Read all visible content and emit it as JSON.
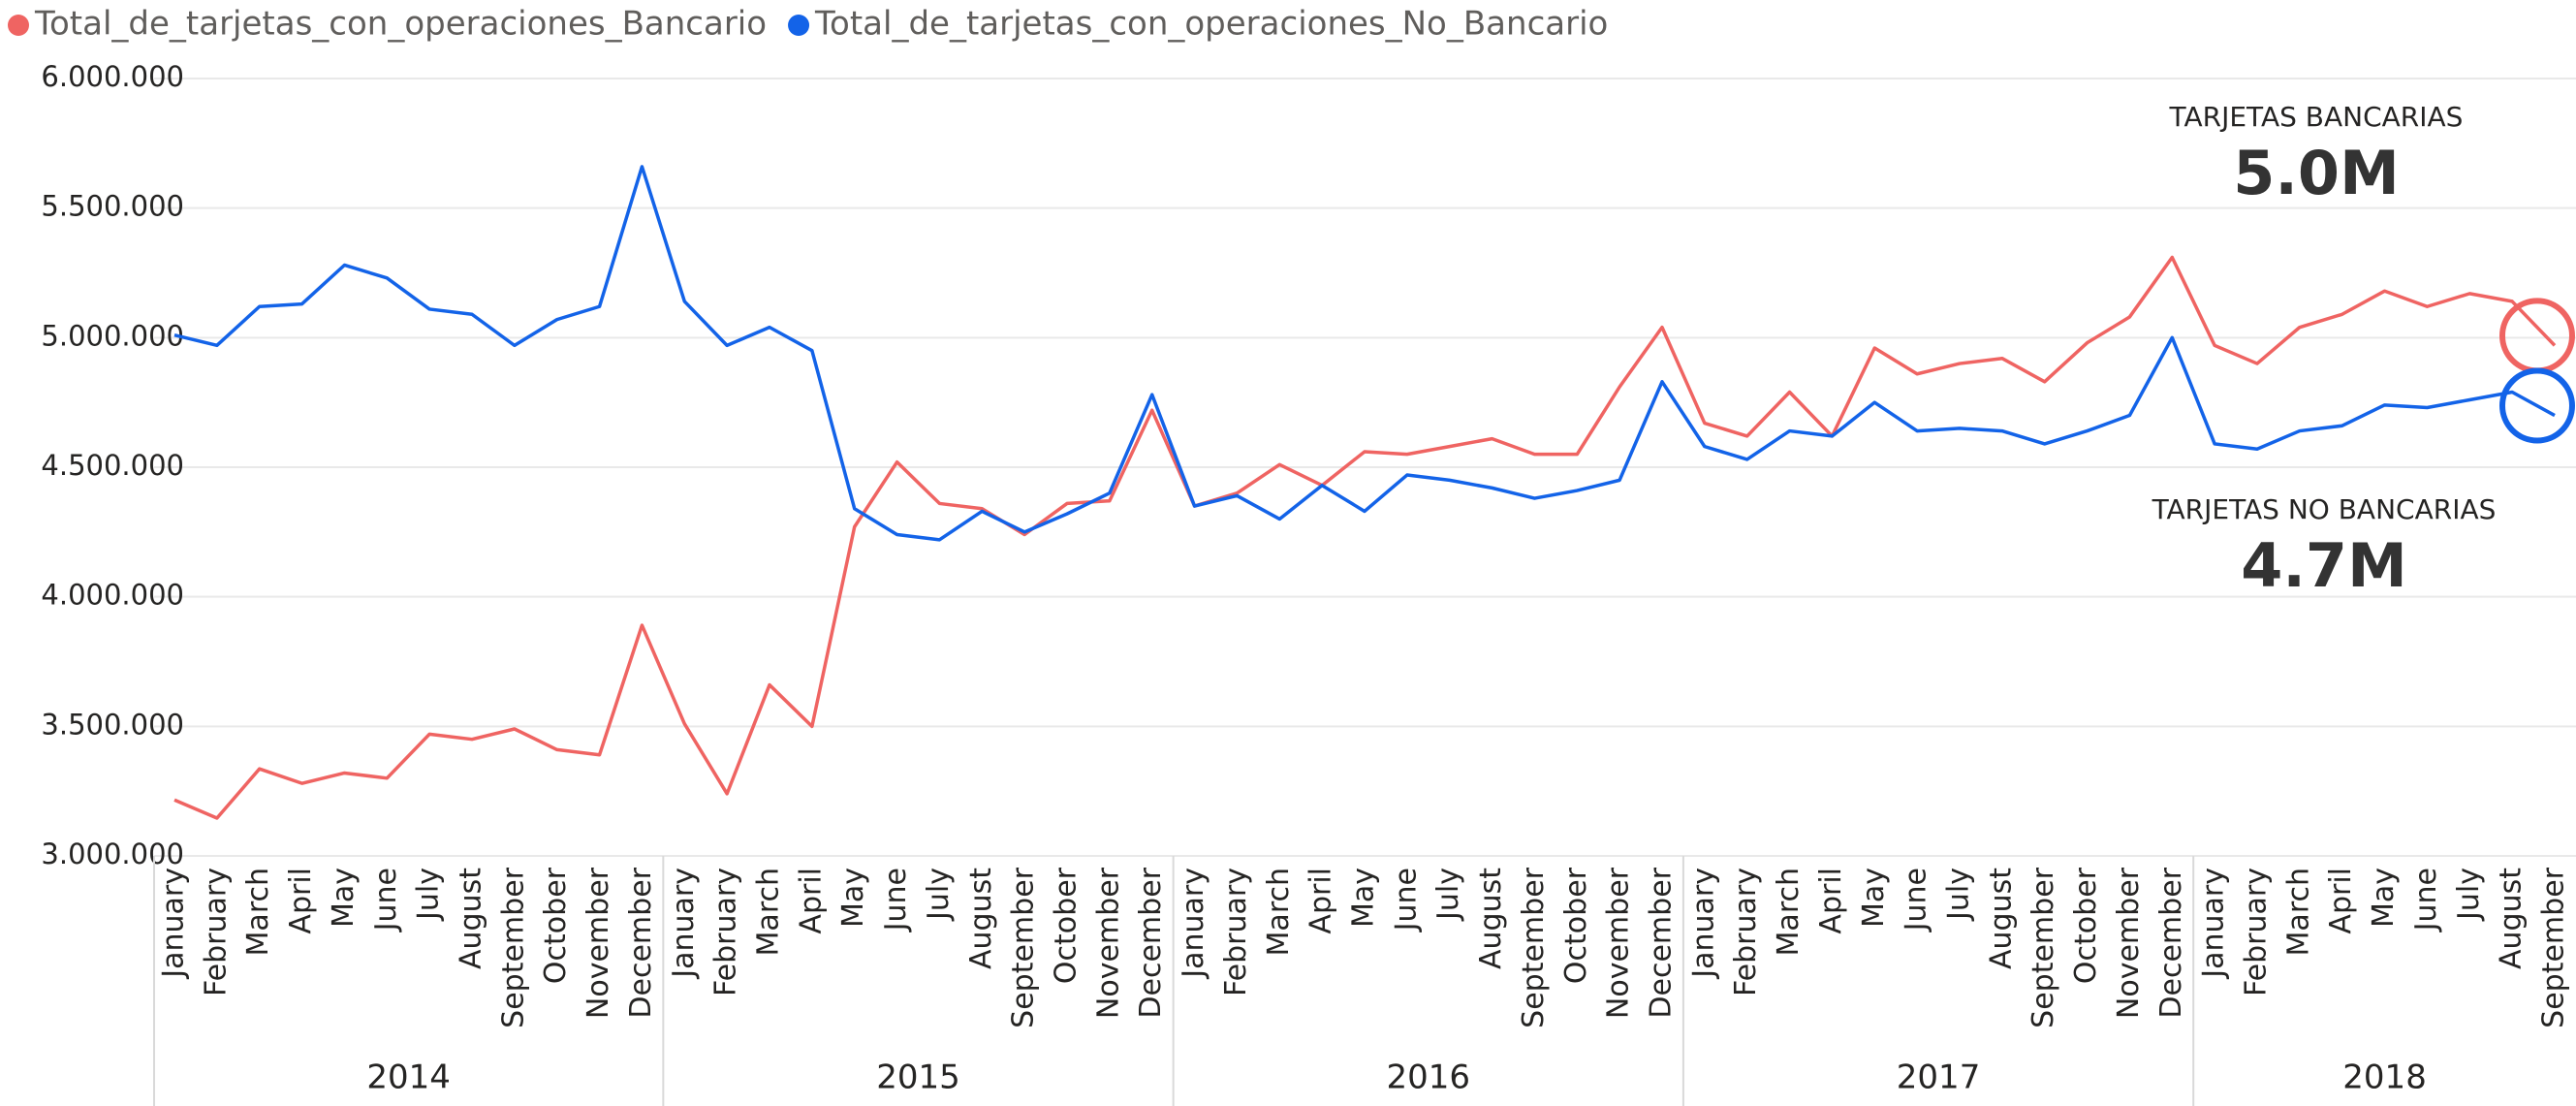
{
  "chart_data": {
    "type": "line",
    "year_groups": [
      {
        "year": "2014",
        "months": [
          "January",
          "February",
          "March",
          "April",
          "May",
          "June",
          "July",
          "August",
          "September",
          "October",
          "November",
          "December"
        ]
      },
      {
        "year": "2015",
        "months": [
          "January",
          "February",
          "March",
          "April",
          "May",
          "June",
          "July",
          "August",
          "September",
          "October",
          "November",
          "December"
        ]
      },
      {
        "year": "2016",
        "months": [
          "January",
          "February",
          "March",
          "April",
          "May",
          "June",
          "July",
          "August",
          "September",
          "October",
          "November",
          "December"
        ]
      },
      {
        "year": "2017",
        "months": [
          "January",
          "February",
          "March",
          "April",
          "May",
          "June",
          "July",
          "August",
          "September",
          "October",
          "November",
          "December"
        ]
      },
      {
        "year": "2018",
        "months": [
          "January",
          "February",
          "March",
          "April",
          "May",
          "June",
          "July",
          "August",
          "September"
        ]
      }
    ],
    "series": [
      {
        "name": "Total_de_tarjetas_con_operaciones_Bancario",
        "color": "#ef6462",
        "values": [
          3216000,
          3146000,
          3336000,
          3280000,
          3320000,
          3300000,
          3470000,
          3450000,
          3490000,
          3410000,
          3390000,
          3890000,
          3510000,
          3240000,
          3660000,
          3500000,
          4270000,
          4520000,
          4360000,
          4340000,
          4240000,
          4360000,
          4370000,
          4720000,
          4350000,
          4400000,
          4510000,
          4430000,
          4560000,
          4550000,
          4580000,
          4610000,
          4550000,
          4550000,
          4810000,
          5040000,
          4670000,
          4620000,
          4790000,
          4620000,
          4960000,
          4860000,
          4900000,
          4920000,
          4830000,
          4980000,
          5080000,
          5310000,
          4970000,
          4900000,
          5040000,
          5090000,
          5180000,
          5120000,
          5170000,
          5140000,
          4970000
        ]
      },
      {
        "name": "Total_de_tarjetas_con_operaciones_No_Bancario",
        "color": "#1363e8",
        "values": [
          5010000,
          4970000,
          5120000,
          5130000,
          5280000,
          5230000,
          5110000,
          5090000,
          4970000,
          5070000,
          5120000,
          5660000,
          5140000,
          4970000,
          5040000,
          4950000,
          4340000,
          4240000,
          4220000,
          4330000,
          4250000,
          4320000,
          4400000,
          4780000,
          4350000,
          4390000,
          4300000,
          4430000,
          4330000,
          4470000,
          4450000,
          4420000,
          4380000,
          4410000,
          4450000,
          4830000,
          4580000,
          4530000,
          4640000,
          4620000,
          4750000,
          4640000,
          4650000,
          4640000,
          4590000,
          4640000,
          4700000,
          5000000,
          4590000,
          4570000,
          4640000,
          4660000,
          4740000,
          4730000,
          4760000,
          4790000,
          4700000
        ]
      }
    ],
    "ylim": [
      3000000,
      6000000
    ],
    "yticks": [
      {
        "value": 3000000,
        "label": "3.000.000"
      },
      {
        "value": 3500000,
        "label": "3.500.000"
      },
      {
        "value": 4000000,
        "label": "4.000.000"
      },
      {
        "value": 4500000,
        "label": "4.500.000"
      },
      {
        "value": 5000000,
        "label": "5.000.000"
      },
      {
        "value": 5500000,
        "label": "5.500.000"
      },
      {
        "value": 6000000,
        "label": "6.000.000"
      }
    ],
    "grid": true,
    "legend": "top-left",
    "cards": [
      {
        "title": "TARJETAS BANCARIAS",
        "value": "5.0M"
      },
      {
        "title": "TARJETAS NO BANCARIAS",
        "value": "4.7M"
      }
    ]
  }
}
